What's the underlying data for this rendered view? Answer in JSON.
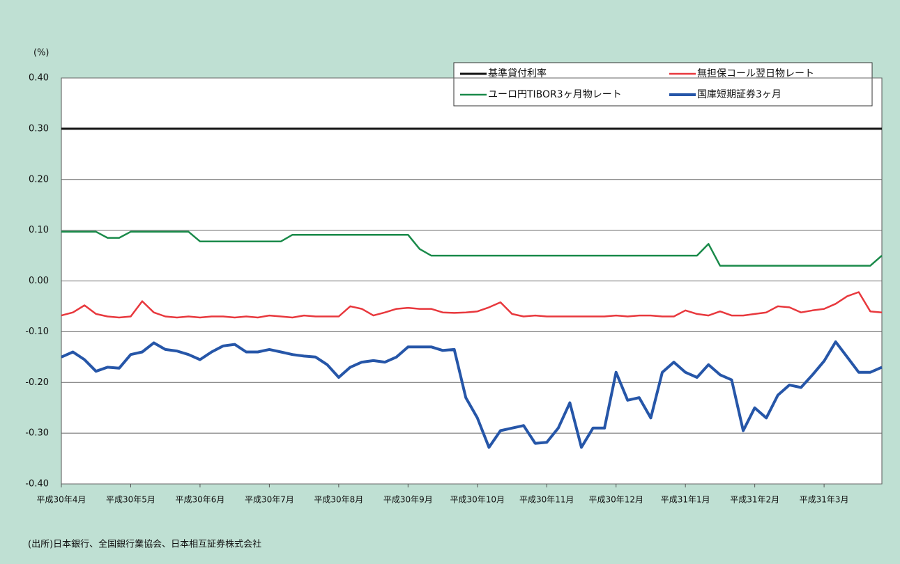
{
  "chart_data": {
    "type": "line",
    "y_label": "(%)",
    "source": "(出所)日本銀行、全国銀行業協会、日本相互証券株式会社",
    "categories": [
      "平成30年4月",
      null,
      null,
      null,
      null,
      null,
      "平成30年5月",
      null,
      null,
      null,
      null,
      null,
      "平成30年6月",
      null,
      null,
      null,
      null,
      null,
      "平成30年7月",
      null,
      null,
      null,
      null,
      null,
      "平成30年8月",
      null,
      null,
      null,
      null,
      null,
      "平成30年9月",
      null,
      null,
      null,
      null,
      null,
      "平成30年10月",
      null,
      null,
      null,
      null,
      null,
      "平成30年11月",
      null,
      null,
      null,
      null,
      null,
      "平成30年12月",
      null,
      null,
      null,
      null,
      null,
      "平成31年1月",
      null,
      null,
      null,
      null,
      null,
      "平成31年2月",
      null,
      null,
      null,
      null,
      null,
      "平成31年3月",
      null,
      null,
      null,
      null,
      null
    ],
    "series": [
      {
        "name": "基準貸付利率",
        "color": "#111111",
        "width": 3,
        "values": [
          0.3,
          0.3,
          0.3,
          0.3,
          0.3,
          0.3,
          0.3,
          0.3,
          0.3,
          0.3,
          0.3,
          0.3,
          0.3,
          0.3,
          0.3,
          0.3,
          0.3,
          0.3,
          0.3,
          0.3,
          0.3,
          0.3,
          0.3,
          0.3,
          0.3,
          0.3,
          0.3,
          0.3,
          0.3,
          0.3,
          0.3,
          0.3,
          0.3,
          0.3,
          0.3,
          0.3,
          0.3,
          0.3,
          0.3,
          0.3,
          0.3,
          0.3,
          0.3,
          0.3,
          0.3,
          0.3,
          0.3,
          0.3,
          0.3,
          0.3,
          0.3,
          0.3,
          0.3,
          0.3,
          0.3,
          0.3,
          0.3,
          0.3,
          0.3,
          0.3,
          0.3,
          0.3,
          0.3,
          0.3,
          0.3,
          0.3,
          0.3,
          0.3,
          0.3,
          0.3,
          0.3,
          0.3
        ]
      },
      {
        "name": "無担保コール翌日物レート",
        "color": "#e8383d",
        "width": 2.5,
        "values": [
          -0.068,
          -0.062,
          -0.048,
          -0.065,
          -0.07,
          -0.072,
          -0.07,
          -0.04,
          -0.062,
          -0.07,
          -0.072,
          -0.07,
          -0.072,
          -0.07,
          -0.07,
          -0.072,
          -0.07,
          -0.072,
          -0.068,
          -0.07,
          -0.072,
          -0.068,
          -0.07,
          -0.07,
          -0.07,
          -0.05,
          -0.055,
          -0.068,
          -0.062,
          -0.055,
          -0.053,
          -0.055,
          -0.055,
          -0.062,
          -0.063,
          -0.062,
          -0.06,
          -0.052,
          -0.042,
          -0.065,
          -0.07,
          -0.068,
          -0.07,
          -0.07,
          -0.07,
          -0.07,
          -0.07,
          -0.07,
          -0.068,
          -0.07,
          -0.068,
          -0.068,
          -0.07,
          -0.07,
          -0.058,
          -0.065,
          -0.068,
          -0.06,
          -0.068,
          -0.068,
          -0.065,
          -0.062,
          -0.05,
          -0.052,
          -0.062,
          -0.058,
          -0.055,
          -0.045,
          -0.03,
          -0.022,
          -0.06,
          -0.062
        ]
      },
      {
        "name": "ユーロ円TIBOR3ヶ月物レート",
        "color": "#1a8a4a",
        "width": 2.5,
        "values": [
          0.097,
          0.097,
          0.097,
          0.097,
          0.085,
          0.085,
          0.097,
          0.097,
          0.097,
          0.097,
          0.097,
          0.097,
          0.078,
          0.078,
          0.078,
          0.078,
          0.078,
          0.078,
          0.078,
          0.078,
          0.091,
          0.091,
          0.091,
          0.091,
          0.091,
          0.091,
          0.091,
          0.091,
          0.091,
          0.091,
          0.091,
          0.063,
          0.05,
          0.05,
          0.05,
          0.05,
          0.05,
          0.05,
          0.05,
          0.05,
          0.05,
          0.05,
          0.05,
          0.05,
          0.05,
          0.05,
          0.05,
          0.05,
          0.05,
          0.05,
          0.05,
          0.05,
          0.05,
          0.05,
          0.05,
          0.05,
          0.073,
          0.03,
          0.03,
          0.03,
          0.03,
          0.03,
          0.03,
          0.03,
          0.03,
          0.03,
          0.03,
          0.03,
          0.03,
          0.03,
          0.03,
          0.05
        ]
      },
      {
        "name": "国庫短期証券3ヶ月",
        "color": "#2656a8",
        "width": 4,
        "values": [
          -0.15,
          -0.14,
          -0.155,
          -0.178,
          -0.17,
          -0.172,
          -0.145,
          -0.14,
          -0.122,
          -0.135,
          -0.138,
          -0.145,
          -0.155,
          -0.14,
          -0.128,
          -0.125,
          -0.14,
          -0.14,
          -0.135,
          -0.14,
          -0.145,
          -0.148,
          -0.15,
          -0.165,
          -0.19,
          -0.17,
          -0.16,
          -0.157,
          -0.16,
          -0.15,
          -0.13,
          -0.13,
          -0.13,
          -0.137,
          -0.135,
          -0.23,
          -0.27,
          -0.328,
          -0.295,
          -0.29,
          -0.285,
          -0.32,
          -0.318,
          -0.29,
          -0.24,
          -0.328,
          -0.29,
          -0.29,
          -0.18,
          -0.235,
          -0.23,
          -0.27,
          -0.18,
          -0.16,
          -0.18,
          -0.19,
          -0.165,
          -0.185,
          -0.195,
          -0.295,
          -0.25,
          -0.27,
          -0.225,
          -0.205,
          -0.21,
          -0.185,
          -0.158,
          -0.12,
          -0.15,
          -0.18,
          -0.18,
          -0.17
        ]
      }
    ],
    "ylim": [
      -0.4,
      0.4
    ],
    "yticks": [
      {
        "value": -0.4,
        "label": "-0.40"
      },
      {
        "value": -0.3,
        "label": "-0.30"
      },
      {
        "value": -0.2,
        "label": "-0.20"
      },
      {
        "value": -0.1,
        "label": "-0.10"
      },
      {
        "value": 0,
        "label": "0.00"
      },
      {
        "value": 0.1,
        "label": "0.10"
      },
      {
        "value": 0.2,
        "label": "0.20"
      },
      {
        "value": 0.3,
        "label": "0.30"
      },
      {
        "value": 0.4,
        "label": "0.40"
      }
    ],
    "grid": true
  }
}
